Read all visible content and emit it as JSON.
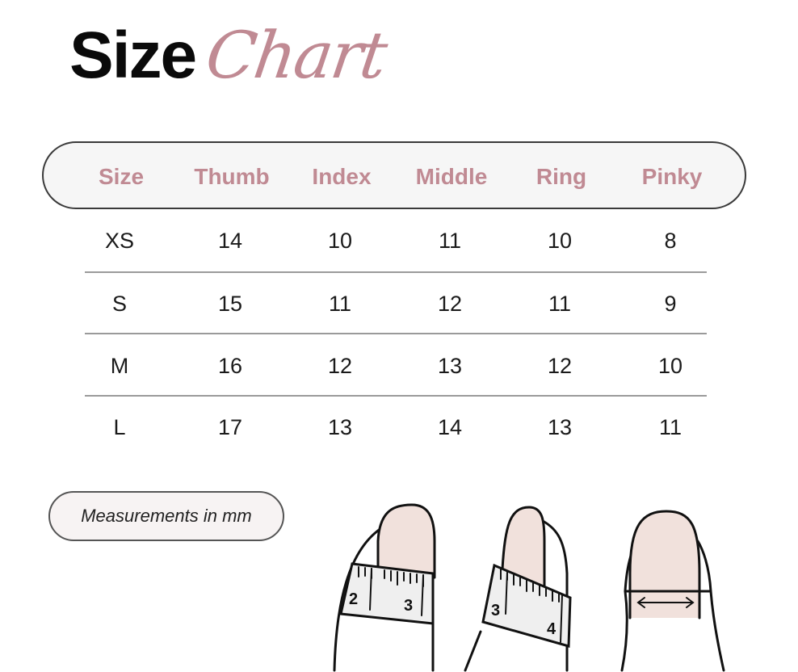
{
  "title": {
    "bold": "Size",
    "script": "Chart"
  },
  "table": {
    "headers": [
      "Size",
      "Thumb",
      "Index",
      "Middle",
      "Ring",
      "Pinky"
    ],
    "rows": [
      [
        "XS",
        "14",
        "10",
        "11",
        "10",
        "8"
      ],
      [
        "S",
        "15",
        "11",
        "12",
        "11",
        "9"
      ],
      [
        "M",
        "16",
        "12",
        "13",
        "12",
        "10"
      ],
      [
        "L",
        "17",
        "13",
        "14",
        "13",
        "11"
      ]
    ]
  },
  "note": "Measurements in mm",
  "illustration": {
    "ruler1": [
      "2",
      "3"
    ],
    "ruler2": [
      "3",
      "4"
    ]
  },
  "colors": {
    "accent": "#c08a93",
    "nail": "#f1e1dc"
  }
}
